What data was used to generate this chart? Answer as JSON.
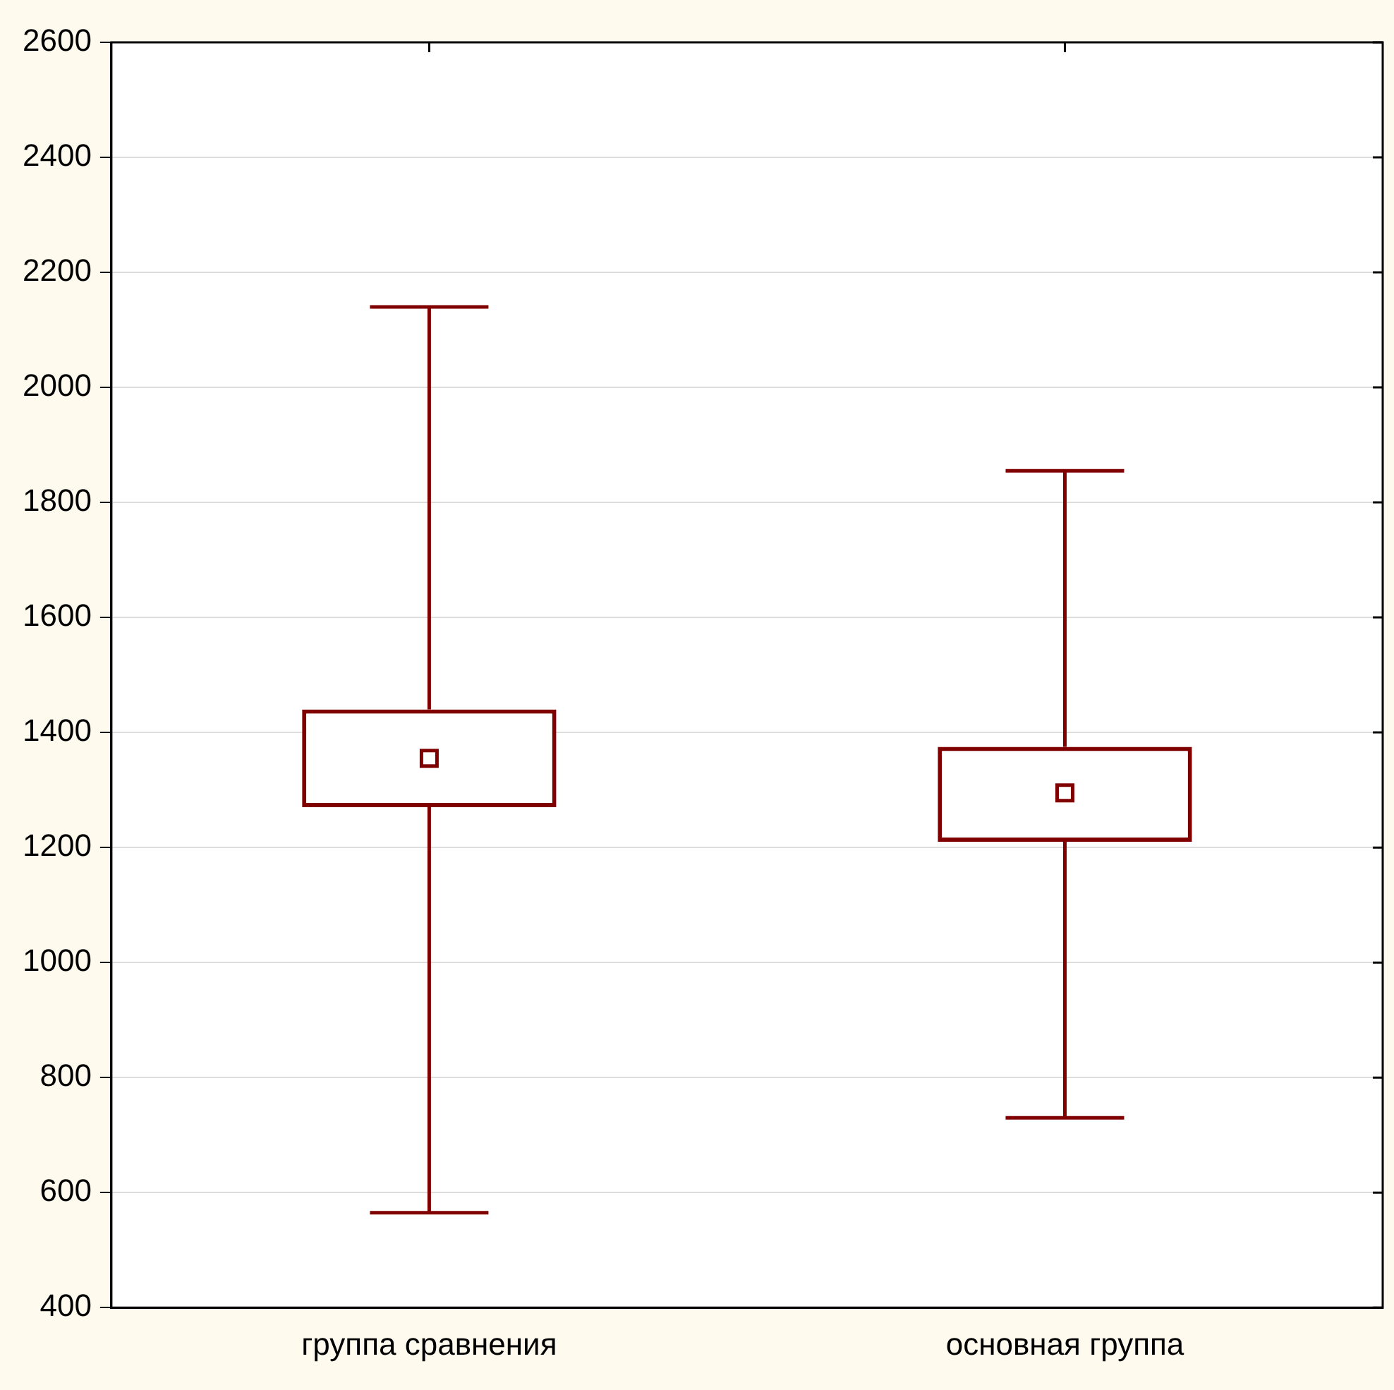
{
  "chart_data": {
    "type": "box",
    "categories": [
      "группа сравнения",
      "основная группа"
    ],
    "boxes": [
      {
        "low": 565,
        "q1": 1270,
        "median": 1355,
        "q3": 1440,
        "high": 2140
      },
      {
        "low": 730,
        "q1": 1210,
        "median": 1295,
        "q3": 1375,
        "high": 1855
      }
    ],
    "color": "#800000",
    "marker": "square",
    "ylim": [
      400,
      2600
    ],
    "yticks": [
      400,
      600,
      800,
      1000,
      1200,
      1400,
      1600,
      1800,
      2000,
      2200,
      2400,
      2600
    ],
    "grid": "y",
    "legend": false
  }
}
